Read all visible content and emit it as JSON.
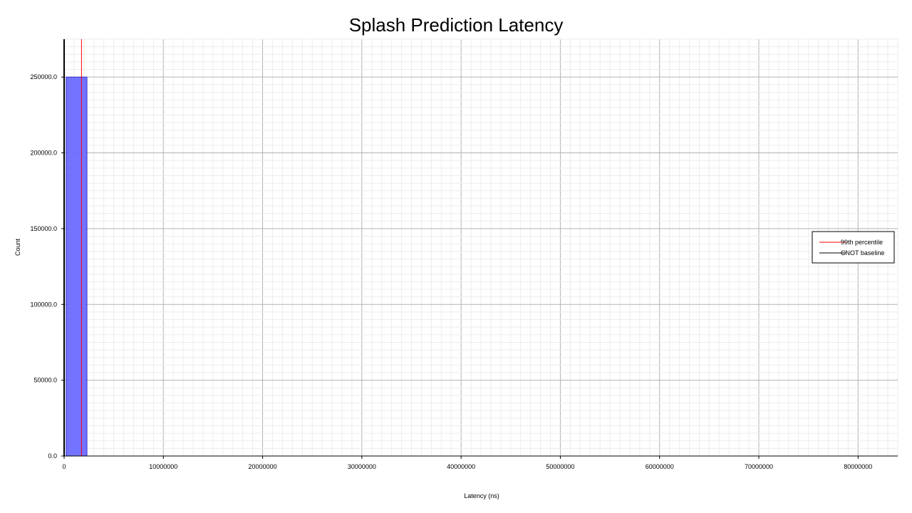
{
  "chart_data": {
    "type": "bar",
    "title": "Splash Prediction Latency",
    "xlabel": "Latency (ns)",
    "ylabel": "Count",
    "xlim": [
      0,
      84000000
    ],
    "ylim": [
      0,
      275000
    ],
    "x_ticks": [
      0,
      10000000,
      20000000,
      30000000,
      40000000,
      50000000,
      60000000,
      70000000,
      80000000
    ],
    "x_tick_labels": [
      "0",
      "10000000",
      "20000000",
      "30000000",
      "40000000",
      "50000000",
      "60000000",
      "70000000",
      "80000000"
    ],
    "y_ticks": [
      0,
      50000,
      100000,
      150000,
      200000,
      250000
    ],
    "y_tick_labels": [
      "0.0",
      "50000.0",
      "100000.0",
      "150000.0",
      "200000.0",
      "250000.0"
    ],
    "grid": true,
    "legend_position": "right",
    "bins": [
      {
        "x0": 200000,
        "x1": 2300000,
        "count": 250000
      }
    ],
    "bar_color": "#6b6bff",
    "vlines": [
      {
        "name": "99th percentile",
        "x": 1750000,
        "color": "#ff0000"
      },
      {
        "name": "CNOT baseline",
        "x": 0,
        "color": "#000000"
      }
    ]
  }
}
